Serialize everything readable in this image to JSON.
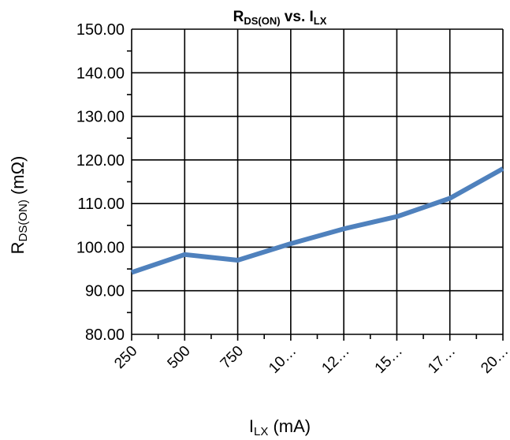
{
  "chart_data": {
    "type": "line",
    "title": {
      "main": "R",
      "sub": "DS(ON)",
      "rest": " vs. I",
      "sub2": "LX"
    },
    "xlabel": {
      "main": "I",
      "sub": "LX",
      "rest": " (mA)"
    },
    "ylabel": {
      "main": "R",
      "sub": "DS(ON)",
      "rest": " (mΩ)"
    },
    "categories": [
      "250",
      "500",
      "750",
      "10…",
      "12…",
      "15…",
      "17…",
      "20…"
    ],
    "y_ticks": [
      "150.00",
      "140.00",
      "130.00",
      "120.00",
      "110.00",
      "100.00",
      "90.00",
      "80.00"
    ],
    "ylim": [
      80,
      150
    ],
    "grid": true,
    "line_color": "#4f81bd",
    "series": [
      {
        "values": [
          94.2,
          98.3,
          97.0,
          100.8,
          104.2,
          107.0,
          111.2,
          118.0
        ]
      }
    ]
  }
}
